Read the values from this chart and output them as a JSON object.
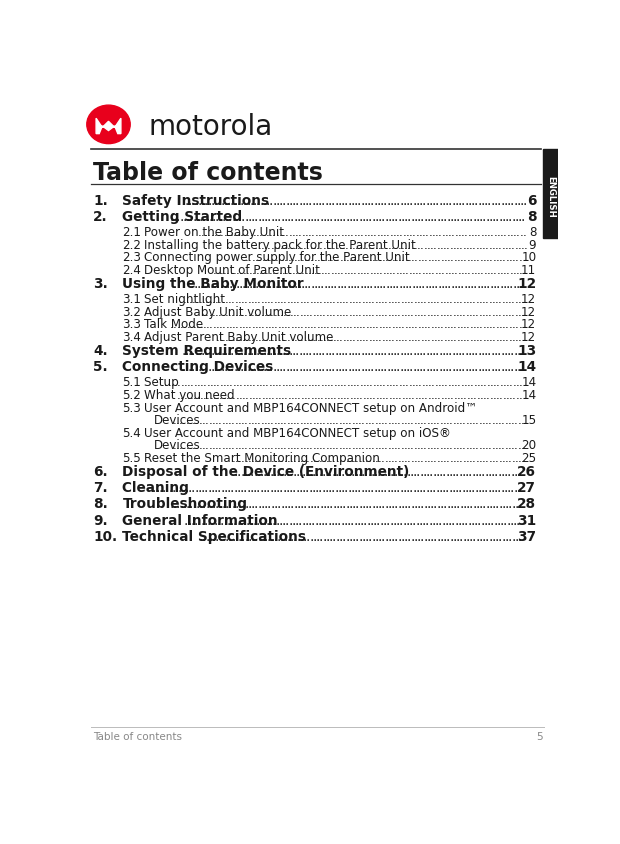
{
  "title": "Table of contents",
  "bg_color": "#ffffff",
  "page_width": 6.2,
  "page_height": 8.44,
  "sidebar_color": "#1a1a1a",
  "sidebar_text": "ENGLISH",
  "footer_text": "Table of contents",
  "footer_page": "5",
  "logo_badge_color": "#e8001c",
  "logo_text_color": "#1a1a1a",
  "text_color": "#1a1a1a",
  "dot_color": "#1a1a1a",
  "entries": [
    {
      "num": "1.",
      "bold": true,
      "text": "Safety Instructions",
      "page": "6",
      "has_continuation": false
    },
    {
      "num": "2.",
      "bold": true,
      "text": "Getting Started",
      "page": "8",
      "has_continuation": false
    },
    {
      "num": "2.1",
      "bold": false,
      "text": "Power on the Baby Unit",
      "page": "8",
      "has_continuation": false
    },
    {
      "num": "2.2",
      "bold": false,
      "text": "Installing the battery pack for the Parent Unit",
      "page": "9",
      "has_continuation": false
    },
    {
      "num": "2.3",
      "bold": false,
      "text": "Connecting power supply for the Parent Unit",
      "page": "10",
      "has_continuation": false
    },
    {
      "num": "2.4",
      "bold": false,
      "text": "Desktop Mount of Parent Unit ",
      "page": "11",
      "has_continuation": false
    },
    {
      "num": "3.",
      "bold": true,
      "text": "Using the Baby Monitor",
      "page": "12",
      "has_continuation": false
    },
    {
      "num": "3.1",
      "bold": false,
      "text": "Set nightlight",
      "page": "12",
      "has_continuation": false
    },
    {
      "num": "3.2",
      "bold": false,
      "text": "Adjust Baby Unit volume ",
      "page": "12",
      "has_continuation": false
    },
    {
      "num": "3.3",
      "bold": false,
      "text": "Talk Mode ",
      "page": "12",
      "has_continuation": false
    },
    {
      "num": "3.4",
      "bold": false,
      "text": "Adjust Parent Baby Unit volume",
      "page": "12",
      "has_continuation": false
    },
    {
      "num": "4.",
      "bold": true,
      "text": "System Requirements",
      "page": "13",
      "has_continuation": false
    },
    {
      "num": "5.",
      "bold": true,
      "text": "Connecting Devices ",
      "page": "14",
      "has_continuation": false
    },
    {
      "num": "5.1",
      "bold": false,
      "text": "Setup ",
      "page": "14",
      "has_continuation": false
    },
    {
      "num": "5.2",
      "bold": false,
      "text": "What you need",
      "page": "14",
      "has_continuation": false
    },
    {
      "num": "5.3",
      "bold": false,
      "text": "User Account and MBP164CONNECT setup on Android™",
      "page": "15",
      "has_continuation": true,
      "continuation": "Devices"
    },
    {
      "num": "5.4",
      "bold": false,
      "text": "User Account and MBP164CONNECT setup on iOS®",
      "page": "20",
      "has_continuation": true,
      "continuation": "Devices"
    },
    {
      "num": "5.5",
      "bold": false,
      "text": "Reset the Smart Monitoring Companion ",
      "page": "25",
      "has_continuation": false
    },
    {
      "num": "6.",
      "bold": true,
      "text": "Disposal of the Device (Environment) ",
      "page": "26",
      "has_continuation": false
    },
    {
      "num": "7.",
      "bold": true,
      "text": "Cleaning ",
      "page": "27",
      "has_continuation": false
    },
    {
      "num": "8.",
      "bold": true,
      "text": "Troubleshooting",
      "page": "28",
      "has_continuation": false
    },
    {
      "num": "9.",
      "bold": true,
      "text": "General Information ",
      "page": "31",
      "has_continuation": false
    },
    {
      "num": "10.",
      "bold": true,
      "text": "Technical Specifications ",
      "page": "37",
      "has_continuation": false
    }
  ]
}
